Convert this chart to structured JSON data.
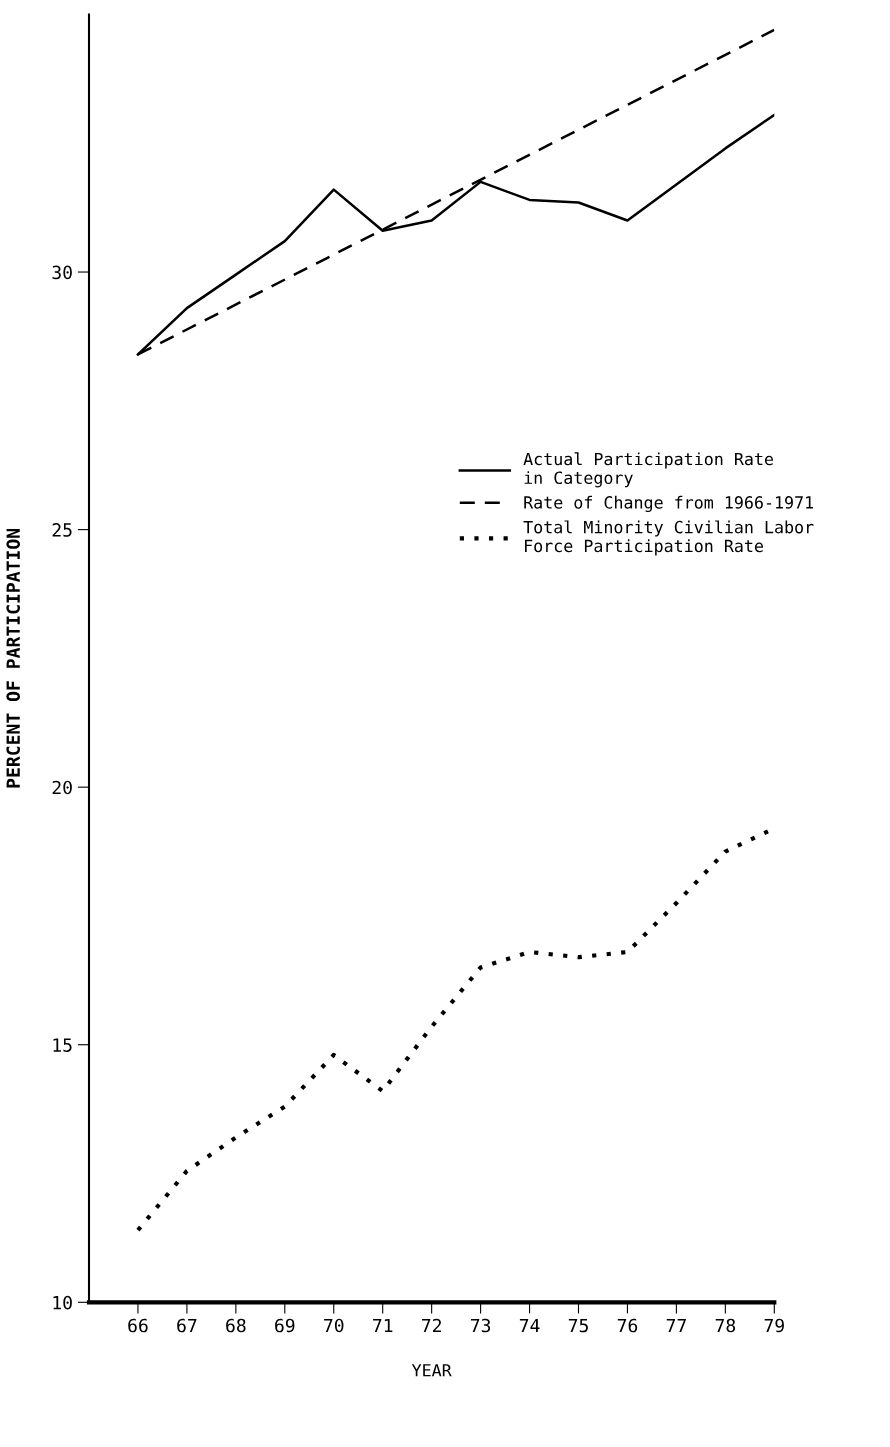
{
  "chart_data": {
    "type": "line",
    "xlabel": "YEAR",
    "ylabel": "PERCENT OF PARTICIPATION",
    "x": [
      66,
      67,
      68,
      69,
      70,
      71,
      72,
      73,
      74,
      75,
      76,
      77,
      78,
      79
    ],
    "series": [
      {
        "name": "Actual Participation Rate\nin Category",
        "color": "#000000",
        "line_style": "solid",
        "values": [
          28.4,
          29.3,
          29.95,
          30.6,
          31.6,
          30.8,
          31.0,
          31.75,
          31.4,
          31.35,
          31.0,
          31.7,
          32.4,
          33.05
        ]
      },
      {
        "name": "Rate of Change from 1966-1971",
        "color": "#000000",
        "line_style": "dashed",
        "x": [
          66,
          79
        ],
        "values": [
          28.4,
          34.7
        ]
      },
      {
        "name": "Total Minority Civilian Labor\nForce Participation Rate",
        "color": "#000000",
        "line_style": "dotted",
        "values": [
          11.4,
          12.55,
          13.2,
          13.8,
          14.8,
          14.1,
          15.35,
          16.5,
          16.8,
          16.7,
          16.8,
          17.75,
          18.75,
          19.2
        ]
      }
    ],
    "xlim": [
      65,
      79
    ],
    "xticks": [
      66,
      67,
      68,
      69,
      70,
      71,
      72,
      73,
      74,
      75,
      76,
      77,
      78,
      79
    ],
    "ylim": [
      10,
      35
    ],
    "yticks": [
      10,
      15,
      20,
      25,
      30
    ],
    "grid": false,
    "legend": "right",
    "marker": "none"
  }
}
